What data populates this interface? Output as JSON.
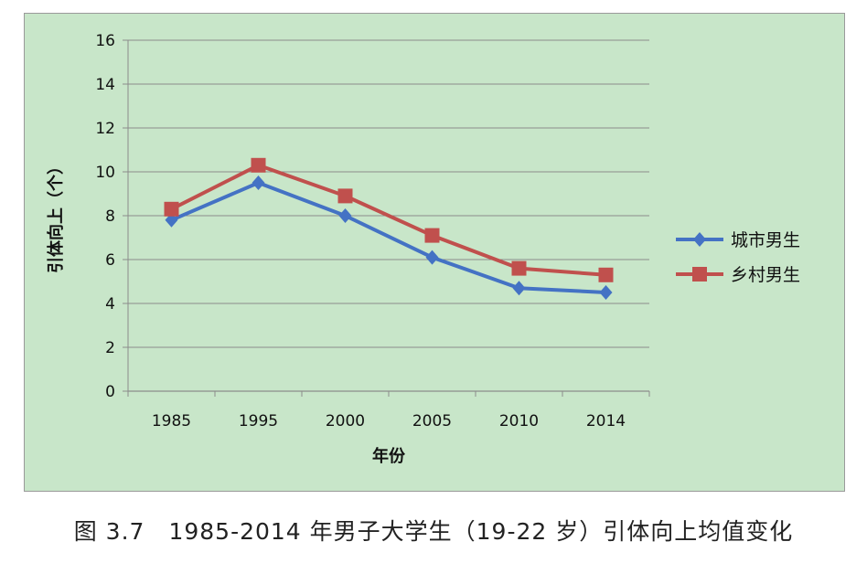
{
  "chart_data": {
    "type": "line",
    "title": "",
    "xlabel": "年份",
    "ylabel": "引体向上（个）",
    "categories": [
      "1985",
      "1995",
      "2000",
      "2005",
      "2010",
      "2014"
    ],
    "ylim": [
      0,
      16
    ],
    "yticks": [
      0,
      2,
      4,
      6,
      8,
      10,
      12,
      14,
      16
    ],
    "grid": true,
    "legend_position": "right",
    "series": [
      {
        "name": "城市男生",
        "values": [
          7.8,
          9.5,
          8.0,
          6.1,
          4.7,
          4.5
        ],
        "color": "#4472c4",
        "marker": "diamond"
      },
      {
        "name": "乡村男生",
        "values": [
          8.3,
          10.3,
          8.9,
          7.1,
          5.6,
          5.3
        ],
        "color": "#c0504d",
        "marker": "square"
      }
    ]
  },
  "caption": "图 3.7　1985-2014 年男子大学生（19-22 岁）引体向上均值变化"
}
